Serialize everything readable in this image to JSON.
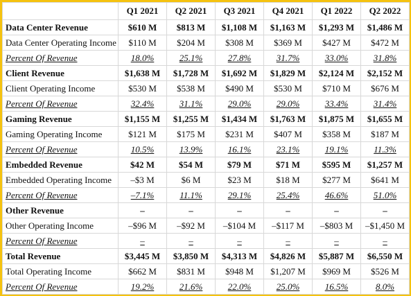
{
  "header": {
    "columns": [
      "Q1 2021",
      "Q2 2021",
      "Q3 2021",
      "Q4 2021",
      "Q1 2022",
      "Q2 2022"
    ]
  },
  "sections": [
    {
      "revenue": {
        "label": "Data Center Revenue",
        "cells": [
          "$610 M",
          "$813 M",
          "$1,108 M",
          "$1,163 M",
          "$1,293 M",
          "$1,486 M"
        ]
      },
      "income": {
        "label": "Data Center Operating Income",
        "cells": [
          "$110 M",
          "$204 M",
          "$308 M",
          "$369 M",
          "$427 M",
          "$472 M"
        ]
      },
      "percent": {
        "label": "Percent Of Revenue",
        "cells": [
          "18.0%",
          "25.1%",
          "27.8%",
          "31.7%",
          "33.0%",
          "31.8%"
        ]
      }
    },
    {
      "revenue": {
        "label": "Client Revenue",
        "cells": [
          "$1,638 M",
          "$1,728 M",
          "$1,692 M",
          "$1,829 M",
          "$2,124 M",
          "$2,152 M"
        ]
      },
      "income": {
        "label": "Client Operating Income",
        "cells": [
          "$530 M",
          "$538 M",
          "$490 M",
          "$530 M",
          "$710 M",
          "$676 M"
        ]
      },
      "percent": {
        "label": "Percent Of Revenue",
        "cells": [
          "32.4%",
          "31.1%",
          "29.0%",
          "29.0%",
          "33.4%",
          "31.4%"
        ]
      }
    },
    {
      "revenue": {
        "label": "Gaming Revenue",
        "cells": [
          "$1,155 M",
          "$1,255 M",
          "$1,434 M",
          "$1,763 M",
          "$1,875 M",
          "$1,655 M"
        ]
      },
      "income": {
        "label": "Gaming Operating Income",
        "cells": [
          "$121 M",
          "$175 M",
          "$231 M",
          "$407 M",
          "$358 M",
          "$187 M"
        ]
      },
      "percent": {
        "label": "Percent Of Revenue",
        "cells": [
          "10.5%",
          "13.9%",
          "16.1%",
          "23.1%",
          "19.1%",
          "11.3%"
        ]
      }
    },
    {
      "revenue": {
        "label": "Embedded Revenue",
        "cells": [
          "$42 M",
          "$54 M",
          "$79 M",
          "$71 M",
          "$595 M",
          "$1,257 M"
        ]
      },
      "income": {
        "label": "Embedded Operating Income",
        "cells": [
          "–$3 M",
          "$6 M",
          "$23 M",
          "$18 M",
          "$277 M",
          "$641 M"
        ]
      },
      "percent": {
        "label": "Percent Of Revenue",
        "cells": [
          "–7.1%",
          "11.1%",
          "29.1%",
          "25.4%",
          "46.6%",
          "51.0%"
        ]
      }
    },
    {
      "revenue": {
        "label": "Other Revenue",
        "cells": [
          "–",
          "–",
          "–",
          "–",
          "–",
          "–"
        ]
      },
      "income": {
        "label": "Other Operating Income",
        "cells": [
          "–$96 M",
          "–$92 M",
          "–$104 M",
          "–$117 M",
          "–$803 M",
          "–$1,450 M"
        ]
      },
      "percent": {
        "label": "Percent Of Revenue",
        "cells": [
          "–",
          "–",
          "–",
          "–",
          "–",
          "–"
        ]
      }
    },
    {
      "revenue": {
        "label": "Total Revenue",
        "cells": [
          "$3,445 M",
          "$3,850 M",
          "$4,313 M",
          "$4,826 M",
          "$5,887 M",
          "$6,550 M"
        ]
      },
      "income": {
        "label": "Total Operating Income",
        "cells": [
          "$662 M",
          "$831 M",
          "$948 M",
          "$1,207 M",
          "$969 M",
          "$526 M"
        ]
      },
      "percent": {
        "label": "Percent Of Revenue",
        "cells": [
          "19.2%",
          "21.6%",
          "22.0%",
          "25.0%",
          "16.5%",
          "8.0%"
        ]
      }
    }
  ]
}
